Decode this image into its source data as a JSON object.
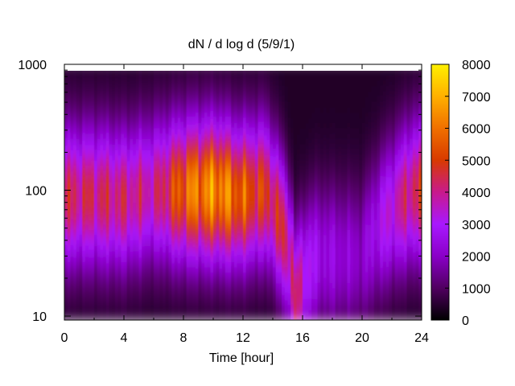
{
  "chart_data": {
    "type": "heatmap",
    "title": "dN / d log d (5/9/1)",
    "xlabel": "Time [hour]",
    "ylabel": "",
    "x_range": [
      0,
      24
    ],
    "y_range": [
      9.3,
      1000
    ],
    "y_scale": "log",
    "x_ticks": [
      "0",
      "4",
      "8",
      "12",
      "16",
      "20",
      "24"
    ],
    "y_ticks": [
      "10",
      "100",
      "1000"
    ],
    "colorbar": {
      "range": [
        0,
        8000
      ],
      "ticks": [
        "0",
        "1000",
        "2000",
        "3000",
        "4000",
        "5000",
        "6000",
        "7000",
        "8000"
      ],
      "colormap": [
        "#000000",
        "#500060",
        "#8a00c8",
        "#a818ff",
        "#c81a8c",
        "#d83a00",
        "#f07000",
        "#ffb000",
        "#fff000"
      ]
    },
    "grid": false,
    "legend": "colorbar-right",
    "series": [
      {
        "time_hour": 0,
        "peak_diameter": 90,
        "peak_value": 4700
      },
      {
        "time_hour": 2,
        "peak_diameter": 90,
        "peak_value": 4800
      },
      {
        "time_hour": 4,
        "peak_diameter": 85,
        "peak_value": 4600
      },
      {
        "time_hour": 6,
        "peak_diameter": 100,
        "peak_value": 4200
      },
      {
        "time_hour": 8.3,
        "peak_diameter": 100,
        "peak_value": 6800
      },
      {
        "time_hour": 10.3,
        "peak_diameter": 100,
        "peak_value": 7400
      },
      {
        "time_hour": 11.6,
        "peak_diameter": 90,
        "peak_value": 6500
      },
      {
        "time_hour": 13.5,
        "peak_diameter": 100,
        "peak_value": 5400
      },
      {
        "time_hour": 15.5,
        "peak_diameter": 13,
        "peak_value": 4600
      },
      {
        "time_hour": 17,
        "peak_diameter": 30,
        "peak_value": 2600
      },
      {
        "time_hour": 20,
        "peak_diameter": 30,
        "peak_value": 2000
      },
      {
        "time_hour": 23.5,
        "peak_diameter": 100,
        "peak_value": 5000
      }
    ]
  }
}
